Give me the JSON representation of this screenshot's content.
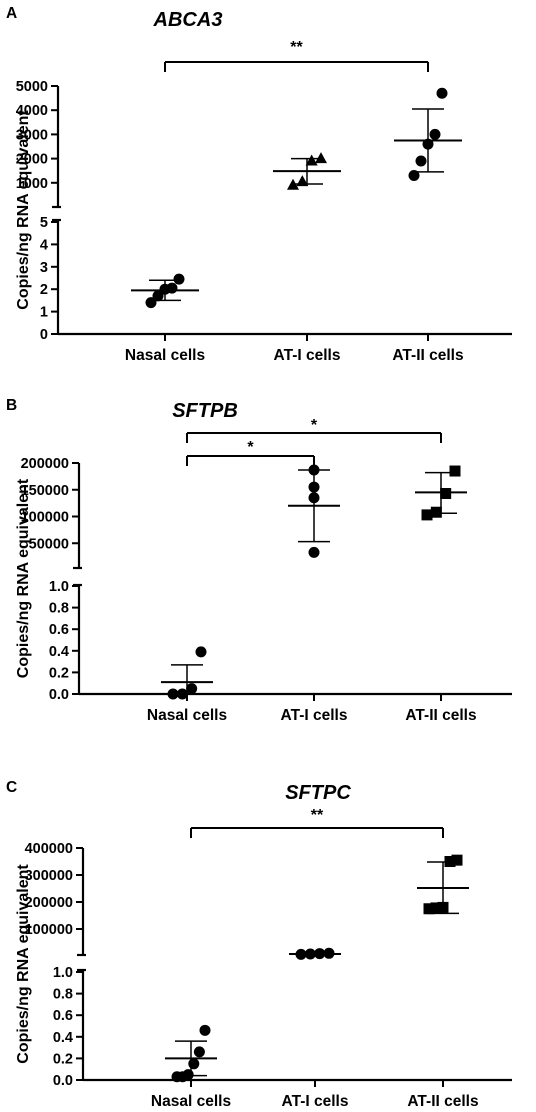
{
  "chart_data": [
    {
      "type": "scatter",
      "panel_label": "A",
      "title": "ABCA3",
      "ylabel": "Copies/ng RNA equivalent",
      "categories": [
        "Nasal cells",
        "AT-I cells",
        "AT-II cells"
      ],
      "y_axis_break": true,
      "lower_axis": {
        "ylim": [
          0,
          5
        ],
        "ticks": [
          "0",
          "1",
          "2",
          "3",
          "4",
          "5"
        ]
      },
      "upper_axis": {
        "ylim": [
          0,
          5000
        ],
        "ticks": [
          "1000",
          "2000",
          "3000",
          "4000",
          "5000"
        ]
      },
      "series": [
        {
          "category": "Nasal cells",
          "marker": "circle",
          "axis": "lower",
          "points": [
            1.4,
            1.7,
            2.0,
            2.05,
            2.45
          ],
          "mean": 1.95,
          "sd_low": 1.5,
          "sd_high": 2.4
        },
        {
          "category": "AT-I cells",
          "marker": "triangle",
          "axis": "upper",
          "points": [
            900,
            1050,
            1900,
            2000
          ],
          "mean": 1480,
          "sd_low": 950,
          "sd_high": 2000
        },
        {
          "category": "AT-II cells",
          "marker": "circle",
          "axis": "upper",
          "points": [
            1300,
            1900,
            2600,
            3000,
            4700
          ],
          "mean": 2750,
          "sd_low": 1450,
          "sd_high": 4050
        }
      ],
      "significance": [
        {
          "from": 0,
          "to": 2,
          "label": "**"
        }
      ]
    },
    {
      "type": "scatter",
      "panel_label": "B",
      "title": "SFTPB",
      "ylabel": "Copies/ng RNA equivalent",
      "categories": [
        "Nasal cells",
        "AT-I cells",
        "AT-II cells"
      ],
      "y_axis_break": true,
      "lower_axis": {
        "ylim": [
          0,
          1.0
        ],
        "ticks": [
          "0.0",
          "0.2",
          "0.4",
          "0.6",
          "0.8",
          "1.0"
        ]
      },
      "upper_axis": {
        "ylim": [
          0,
          200000
        ],
        "ticks": [
          "50000",
          "100000",
          "150000",
          "200000"
        ]
      },
      "series": [
        {
          "category": "Nasal cells",
          "marker": "circle",
          "axis": "lower",
          "points": [
            0.0,
            0.0,
            0.05,
            0.39
          ],
          "mean": 0.11,
          "sd_low": 0.0,
          "sd_high": 0.27
        },
        {
          "category": "AT-I cells",
          "marker": "circle",
          "axis": "upper",
          "points": [
            33000,
            135000,
            155000,
            187000
          ],
          "mean": 120000,
          "sd_low": 53000,
          "sd_high": 187000
        },
        {
          "category": "AT-II cells",
          "marker": "square",
          "axis": "upper",
          "points": [
            103000,
            108000,
            143000,
            185000
          ],
          "mean": 145000,
          "sd_low": 106000,
          "sd_high": 182000
        }
      ],
      "significance": [
        {
          "from": 0,
          "to": 1,
          "label": "*"
        },
        {
          "from": 0,
          "to": 2,
          "label": "*"
        }
      ]
    },
    {
      "type": "scatter",
      "panel_label": "C",
      "title": "SFTPC",
      "ylabel": "Copies/ng RNA equivalent",
      "categories": [
        "Nasal cells",
        "AT-I cells",
        "AT-II cells"
      ],
      "y_axis_break": true,
      "lower_axis": {
        "ylim": [
          0,
          1.0
        ],
        "ticks": [
          "0.0",
          "0.2",
          "0.4",
          "0.6",
          "0.8",
          "1.0"
        ]
      },
      "upper_axis": {
        "ylim": [
          0,
          400000
        ],
        "ticks": [
          "100000",
          "200000",
          "300000",
          "400000"
        ]
      },
      "series": [
        {
          "category": "Nasal cells",
          "marker": "circle",
          "axis": "lower",
          "points": [
            0.03,
            0.03,
            0.05,
            0.15,
            0.26,
            0.46
          ],
          "mean": 0.2,
          "sd_low": 0.04,
          "sd_high": 0.36
        },
        {
          "category": "AT-I cells",
          "marker": "circle",
          "axis": "upper",
          "points": [
            6000,
            7500,
            9000,
            10000
          ],
          "mean": 7500,
          "sd_low": 6500,
          "sd_high": 8500
        },
        {
          "category": "AT-II cells",
          "marker": "square",
          "axis": "upper",
          "points": [
            175000,
            178000,
            180000,
            350000,
            355000
          ],
          "mean": 252000,
          "sd_low": 158000,
          "sd_high": 348000
        }
      ],
      "significance": [
        {
          "from": 0,
          "to": 2,
          "label": "**"
        }
      ]
    }
  ]
}
